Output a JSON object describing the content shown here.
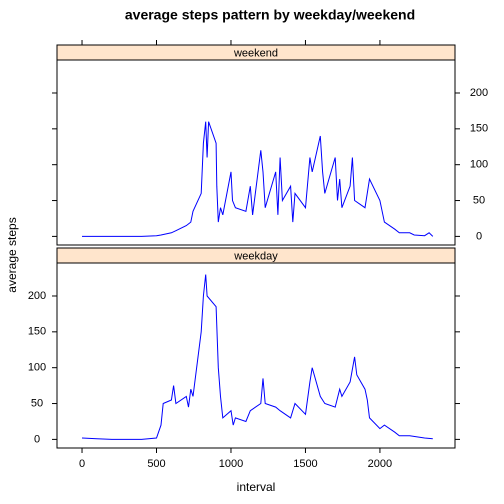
{
  "title": "average steps pattern by weekday/weekend",
  "xlabel": "interval",
  "ylabel": "average steps",
  "chart_data": [
    {
      "type": "line",
      "strip": "weekend",
      "color": "#0000ff",
      "x": [
        0,
        100,
        200,
        300,
        400,
        500,
        530,
        600,
        630,
        700,
        730,
        745,
        800,
        815,
        830,
        840,
        850,
        900,
        905,
        915,
        930,
        945,
        1000,
        1010,
        1030,
        1100,
        1130,
        1145,
        1200,
        1215,
        1230,
        1300,
        1315,
        1330,
        1345,
        1400,
        1415,
        1430,
        1500,
        1530,
        1545,
        1600,
        1615,
        1630,
        1700,
        1715,
        1730,
        1745,
        1800,
        1815,
        1830,
        1900,
        1930,
        2000,
        2030,
        2100,
        2130,
        2200,
        2230,
        2300,
        2330,
        2355
      ],
      "values": [
        0,
        0,
        0,
        0,
        0,
        1,
        2,
        5,
        8,
        15,
        20,
        35,
        60,
        130,
        160,
        110,
        160,
        130,
        70,
        20,
        40,
        30,
        90,
        50,
        40,
        35,
        70,
        30,
        120,
        90,
        40,
        90,
        30,
        110,
        50,
        70,
        20,
        60,
        40,
        110,
        90,
        140,
        90,
        60,
        110,
        50,
        80,
        40,
        70,
        110,
        50,
        40,
        80,
        50,
        20,
        10,
        5,
        5,
        2,
        1,
        5,
        0
      ],
      "xlim": [
        -168,
        2504
      ],
      "ylim": [
        -12,
        246
      ],
      "yticks": [
        0,
        50,
        100,
        150,
        200
      ]
    },
    {
      "type": "line",
      "strip": "weekday",
      "color": "#0000ff",
      "x": [
        0,
        100,
        200,
        300,
        400,
        500,
        530,
        545,
        600,
        615,
        630,
        700,
        715,
        730,
        745,
        800,
        815,
        830,
        840,
        900,
        915,
        930,
        945,
        1000,
        1015,
        1030,
        1100,
        1130,
        1200,
        1215,
        1230,
        1300,
        1330,
        1400,
        1430,
        1500,
        1530,
        1545,
        1600,
        1630,
        1700,
        1730,
        1745,
        1800,
        1830,
        1845,
        1900,
        1915,
        1930,
        2000,
        2030,
        2100,
        2130,
        2200,
        2300,
        2355
      ],
      "values": [
        2,
        1,
        0,
        0,
        0,
        2,
        20,
        50,
        55,
        75,
        50,
        60,
        45,
        70,
        60,
        150,
        200,
        230,
        200,
        185,
        100,
        60,
        30,
        40,
        20,
        30,
        25,
        40,
        50,
        85,
        50,
        45,
        40,
        30,
        50,
        35,
        80,
        100,
        60,
        50,
        45,
        70,
        60,
        80,
        115,
        90,
        70,
        55,
        30,
        15,
        20,
        10,
        5,
        5,
        2,
        1
      ],
      "xlim": [
        -168,
        2504
      ],
      "ylim": [
        -12,
        246
      ],
      "yticks": [
        0,
        50,
        100,
        150,
        200
      ],
      "xticks": [
        0,
        500,
        1000,
        1500,
        2000
      ]
    }
  ]
}
